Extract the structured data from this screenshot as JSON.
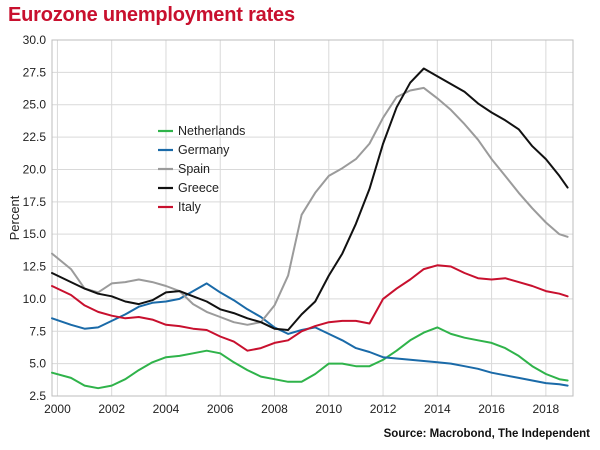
{
  "header": {
    "title": "Eurozone unemployment rates"
  },
  "footer": {
    "source": "Source: Macrobond, The Independent"
  },
  "chart_data": {
    "type": "line",
    "title": "Eurozone unemployment rates",
    "xlabel": "",
    "ylabel": "Percent",
    "xlim": [
      1999.8,
      2019.0
    ],
    "ylim": [
      2.5,
      30.0
    ],
    "x_ticks": [
      2000,
      2002,
      2004,
      2006,
      2008,
      2010,
      2012,
      2014,
      2016,
      2018
    ],
    "x_tick_labels": [
      "2000",
      "2002",
      "2004",
      "2006",
      "2008",
      "2010",
      "2012",
      "2014",
      "2016",
      "2018"
    ],
    "y_ticks": [
      2.5,
      5.0,
      7.5,
      10.0,
      12.5,
      15.0,
      17.5,
      20.0,
      22.5,
      25.0,
      27.5,
      30.0
    ],
    "y_tick_labels": [
      "2.5",
      "5.0",
      "7.5",
      "10.0",
      "12.5",
      "15.0",
      "17.5",
      "20.0",
      "22.5",
      "25.0",
      "27.5",
      "30.0"
    ],
    "grid": true,
    "legend_position": "upper-left",
    "series": [
      {
        "name": "Netherlands",
        "color": "#2fb34a",
        "points": [
          [
            1999.8,
            4.3
          ],
          [
            2000.5,
            3.9
          ],
          [
            2001.0,
            3.3
          ],
          [
            2001.5,
            3.1
          ],
          [
            2002.0,
            3.3
          ],
          [
            2002.5,
            3.8
          ],
          [
            2003.0,
            4.5
          ],
          [
            2003.5,
            5.1
          ],
          [
            2004.0,
            5.5
          ],
          [
            2004.5,
            5.6
          ],
          [
            2005.0,
            5.8
          ],
          [
            2005.5,
            6.0
          ],
          [
            2006.0,
            5.8
          ],
          [
            2006.5,
            5.1
          ],
          [
            2007.0,
            4.5
          ],
          [
            2007.5,
            4.0
          ],
          [
            2008.0,
            3.8
          ],
          [
            2008.5,
            3.6
          ],
          [
            2009.0,
            3.6
          ],
          [
            2009.5,
            4.2
          ],
          [
            2010.0,
            5.0
          ],
          [
            2010.5,
            5.0
          ],
          [
            2011.0,
            4.8
          ],
          [
            2011.5,
            4.8
          ],
          [
            2012.0,
            5.3
          ],
          [
            2012.5,
            6.0
          ],
          [
            2013.0,
            6.8
          ],
          [
            2013.5,
            7.4
          ],
          [
            2014.0,
            7.8
          ],
          [
            2014.5,
            7.3
          ],
          [
            2015.0,
            7.0
          ],
          [
            2015.5,
            6.8
          ],
          [
            2016.0,
            6.6
          ],
          [
            2016.5,
            6.2
          ],
          [
            2017.0,
            5.6
          ],
          [
            2017.5,
            4.8
          ],
          [
            2018.0,
            4.2
          ],
          [
            2018.5,
            3.8
          ],
          [
            2018.8,
            3.7
          ]
        ]
      },
      {
        "name": "Germany",
        "color": "#1a6aa8",
        "points": [
          [
            1999.8,
            8.5
          ],
          [
            2000.5,
            8.0
          ],
          [
            2001.0,
            7.7
          ],
          [
            2001.5,
            7.8
          ],
          [
            2002.0,
            8.3
          ],
          [
            2002.5,
            8.8
          ],
          [
            2003.0,
            9.4
          ],
          [
            2003.5,
            9.7
          ],
          [
            2004.0,
            9.8
          ],
          [
            2004.5,
            10.0
          ],
          [
            2005.0,
            10.6
          ],
          [
            2005.5,
            11.2
          ],
          [
            2006.0,
            10.5
          ],
          [
            2006.5,
            9.9
          ],
          [
            2007.0,
            9.2
          ],
          [
            2007.5,
            8.6
          ],
          [
            2008.0,
            7.8
          ],
          [
            2008.5,
            7.3
          ],
          [
            2009.0,
            7.6
          ],
          [
            2009.5,
            7.8
          ],
          [
            2010.0,
            7.3
          ],
          [
            2010.5,
            6.8
          ],
          [
            2011.0,
            6.2
          ],
          [
            2011.5,
            5.9
          ],
          [
            2012.0,
            5.5
          ],
          [
            2012.5,
            5.4
          ],
          [
            2013.0,
            5.3
          ],
          [
            2013.5,
            5.2
          ],
          [
            2014.0,
            5.1
          ],
          [
            2014.5,
            5.0
          ],
          [
            2015.0,
            4.8
          ],
          [
            2015.5,
            4.6
          ],
          [
            2016.0,
            4.3
          ],
          [
            2016.5,
            4.1
          ],
          [
            2017.0,
            3.9
          ],
          [
            2017.5,
            3.7
          ],
          [
            2018.0,
            3.5
          ],
          [
            2018.5,
            3.4
          ],
          [
            2018.8,
            3.3
          ]
        ]
      },
      {
        "name": "Spain",
        "color": "#9b9b9b",
        "points": [
          [
            1999.8,
            13.5
          ],
          [
            2000.5,
            12.3
          ],
          [
            2001.0,
            10.8
          ],
          [
            2001.5,
            10.5
          ],
          [
            2002.0,
            11.2
          ],
          [
            2002.5,
            11.3
          ],
          [
            2003.0,
            11.5
          ],
          [
            2003.5,
            11.3
          ],
          [
            2004.0,
            11.0
          ],
          [
            2004.5,
            10.6
          ],
          [
            2005.0,
            9.6
          ],
          [
            2005.5,
            9.0
          ],
          [
            2006.0,
            8.6
          ],
          [
            2006.5,
            8.2
          ],
          [
            2007.0,
            8.0
          ],
          [
            2007.5,
            8.2
          ],
          [
            2008.0,
            9.5
          ],
          [
            2008.5,
            11.8
          ],
          [
            2009.0,
            16.5
          ],
          [
            2009.5,
            18.2
          ],
          [
            2010.0,
            19.5
          ],
          [
            2010.5,
            20.1
          ],
          [
            2011.0,
            20.8
          ],
          [
            2011.5,
            22.0
          ],
          [
            2012.0,
            24.0
          ],
          [
            2012.5,
            25.6
          ],
          [
            2013.0,
            26.1
          ],
          [
            2013.5,
            26.3
          ],
          [
            2014.0,
            25.5
          ],
          [
            2014.5,
            24.6
          ],
          [
            2015.0,
            23.5
          ],
          [
            2015.5,
            22.3
          ],
          [
            2016.0,
            20.8
          ],
          [
            2016.5,
            19.5
          ],
          [
            2017.0,
            18.2
          ],
          [
            2017.5,
            17.0
          ],
          [
            2018.0,
            15.9
          ],
          [
            2018.5,
            15.0
          ],
          [
            2018.8,
            14.8
          ]
        ]
      },
      {
        "name": "Greece",
        "color": "#111111",
        "points": [
          [
            1999.8,
            12.0
          ],
          [
            2000.5,
            11.3
          ],
          [
            2001.0,
            10.8
          ],
          [
            2001.5,
            10.4
          ],
          [
            2002.0,
            10.2
          ],
          [
            2002.5,
            9.8
          ],
          [
            2003.0,
            9.6
          ],
          [
            2003.5,
            9.9
          ],
          [
            2004.0,
            10.5
          ],
          [
            2004.5,
            10.6
          ],
          [
            2005.0,
            10.2
          ],
          [
            2005.5,
            9.8
          ],
          [
            2006.0,
            9.2
          ],
          [
            2006.5,
            8.9
          ],
          [
            2007.0,
            8.5
          ],
          [
            2007.5,
            8.2
          ],
          [
            2008.0,
            7.7
          ],
          [
            2008.5,
            7.6
          ],
          [
            2009.0,
            8.8
          ],
          [
            2009.5,
            9.8
          ],
          [
            2010.0,
            11.8
          ],
          [
            2010.5,
            13.5
          ],
          [
            2011.0,
            15.8
          ],
          [
            2011.5,
            18.5
          ],
          [
            2012.0,
            22.0
          ],
          [
            2012.5,
            24.8
          ],
          [
            2013.0,
            26.7
          ],
          [
            2013.5,
            27.8
          ],
          [
            2014.0,
            27.2
          ],
          [
            2014.5,
            26.6
          ],
          [
            2015.0,
            26.0
          ],
          [
            2015.5,
            25.1
          ],
          [
            2016.0,
            24.4
          ],
          [
            2016.5,
            23.8
          ],
          [
            2017.0,
            23.1
          ],
          [
            2017.5,
            21.8
          ],
          [
            2018.0,
            20.8
          ],
          [
            2018.5,
            19.5
          ],
          [
            2018.8,
            18.6
          ]
        ]
      },
      {
        "name": "Italy",
        "color": "#c8102e",
        "points": [
          [
            1999.8,
            11.0
          ],
          [
            2000.5,
            10.3
          ],
          [
            2001.0,
            9.5
          ],
          [
            2001.5,
            9.0
          ],
          [
            2002.0,
            8.7
          ],
          [
            2002.5,
            8.5
          ],
          [
            2003.0,
            8.6
          ],
          [
            2003.5,
            8.4
          ],
          [
            2004.0,
            8.0
          ],
          [
            2004.5,
            7.9
          ],
          [
            2005.0,
            7.7
          ],
          [
            2005.5,
            7.6
          ],
          [
            2006.0,
            7.1
          ],
          [
            2006.5,
            6.7
          ],
          [
            2007.0,
            6.0
          ],
          [
            2007.5,
            6.2
          ],
          [
            2008.0,
            6.6
          ],
          [
            2008.5,
            6.8
          ],
          [
            2009.0,
            7.5
          ],
          [
            2009.5,
            7.9
          ],
          [
            2010.0,
            8.2
          ],
          [
            2010.5,
            8.3
          ],
          [
            2011.0,
            8.3
          ],
          [
            2011.5,
            8.1
          ],
          [
            2012.0,
            10.0
          ],
          [
            2012.5,
            10.8
          ],
          [
            2013.0,
            11.5
          ],
          [
            2013.5,
            12.3
          ],
          [
            2014.0,
            12.6
          ],
          [
            2014.5,
            12.5
          ],
          [
            2015.0,
            12.0
          ],
          [
            2015.5,
            11.6
          ],
          [
            2016.0,
            11.5
          ],
          [
            2016.5,
            11.6
          ],
          [
            2017.0,
            11.3
          ],
          [
            2017.5,
            11.0
          ],
          [
            2018.0,
            10.6
          ],
          [
            2018.5,
            10.4
          ],
          [
            2018.8,
            10.2
          ]
        ]
      }
    ]
  }
}
